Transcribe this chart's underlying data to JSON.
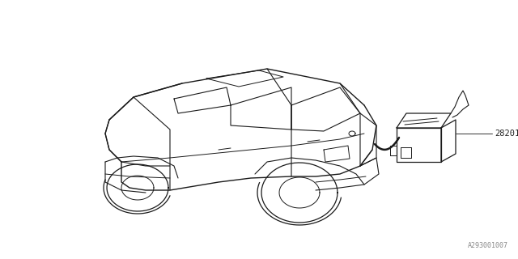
{
  "bg_color": "#ffffff",
  "line_color": "#1a1a1a",
  "part_number": "28201",
  "diagram_code": "A293001007",
  "figsize": [
    6.4,
    3.2
  ],
  "dpi": 100
}
